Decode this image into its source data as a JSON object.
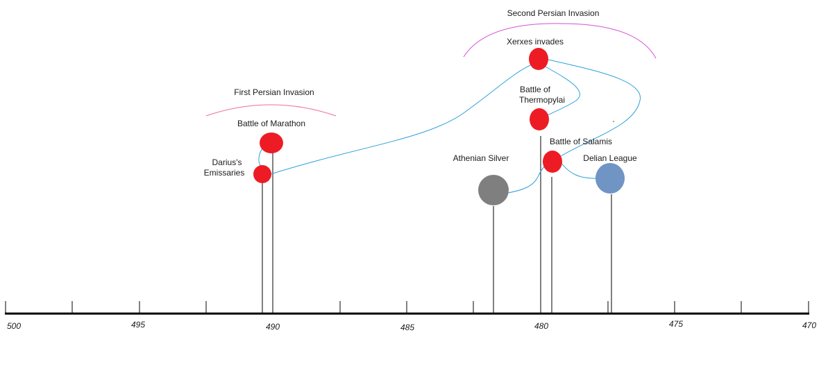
{
  "groups": {
    "first": "First Persian Invasion",
    "second": "Second Persian Invasion"
  },
  "events": {
    "darius": {
      "line1": "Darius's",
      "line2": "Emissaries",
      "color": "#ed1c24"
    },
    "marathon": {
      "label": "Battle of Marathon",
      "color": "#ed1c24"
    },
    "silver": {
      "label": "Athenian Silver",
      "color": "#7f7f7f"
    },
    "xerxes": {
      "label": "Xerxes invades",
      "color": "#ed1c24"
    },
    "thermopylai": {
      "line1": "Battle of",
      "line2": "Thermopylai",
      "color": "#ed1c24"
    },
    "salamis": {
      "label": "Battle of Salamis",
      "color": "#ed1c24"
    },
    "delian": {
      "label": "Delian League",
      "color": "#7094c4"
    }
  },
  "axis": {
    "ticks": [
      "500",
      "495",
      "490",
      "485",
      "480",
      "475",
      "470"
    ]
  },
  "colors": {
    "connector": "#2aa1d9",
    "arc_first": "#f06c9b",
    "arc_second": "#d44fd6",
    "axis": "#000000"
  }
}
